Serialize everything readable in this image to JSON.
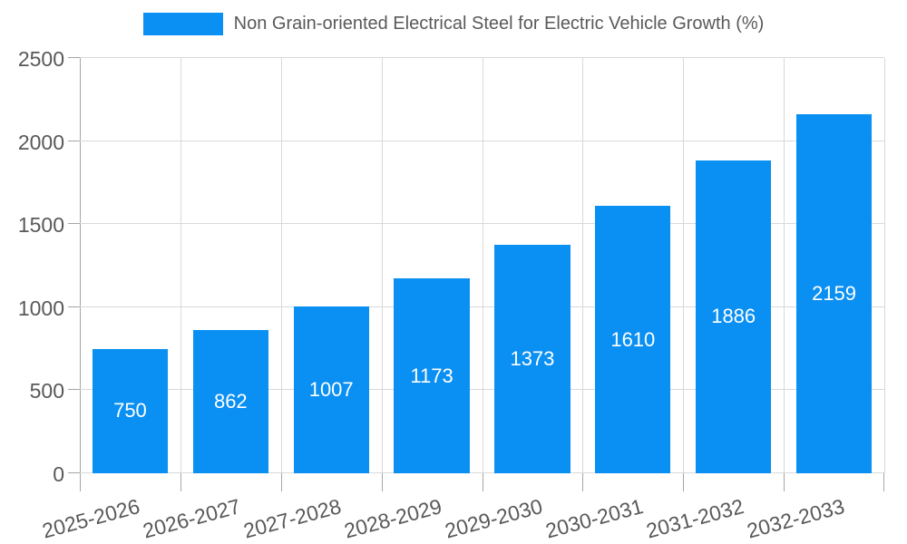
{
  "legend": {
    "label": "Non Grain-oriented Electrical Steel for Electric Vehicle Growth (%)",
    "swatch_color": "#0a8ff2"
  },
  "chart_data": {
    "type": "bar",
    "title": "Non Grain-oriented Electrical Steel for Electric Vehicle Growth (%)",
    "categories": [
      "2025-2026",
      "2026-2027",
      "2027-2028",
      "2028-2029",
      "2029-2030",
      "2030-2031",
      "2031-2032",
      "2032-2033"
    ],
    "values": [
      750,
      862,
      1007,
      1173,
      1373,
      1610,
      1886,
      2159
    ],
    "xlabel": "",
    "ylabel": "",
    "ylim": [
      0,
      2500
    ],
    "yticks": [
      0,
      500,
      1000,
      1500,
      2000,
      2500
    ],
    "grid": true,
    "legend_position": "top",
    "bar_width_fraction": 0.75,
    "value_labels_inside": true,
    "x_label_rotation_deg": -15,
    "colors": {
      "bar": "#0a8ff2",
      "value_label": "#ffffff",
      "axis_text": "#595959",
      "grid_line": "#d9d9d9",
      "axis_line": "#a6a6a6",
      "background": "#ffffff"
    }
  }
}
